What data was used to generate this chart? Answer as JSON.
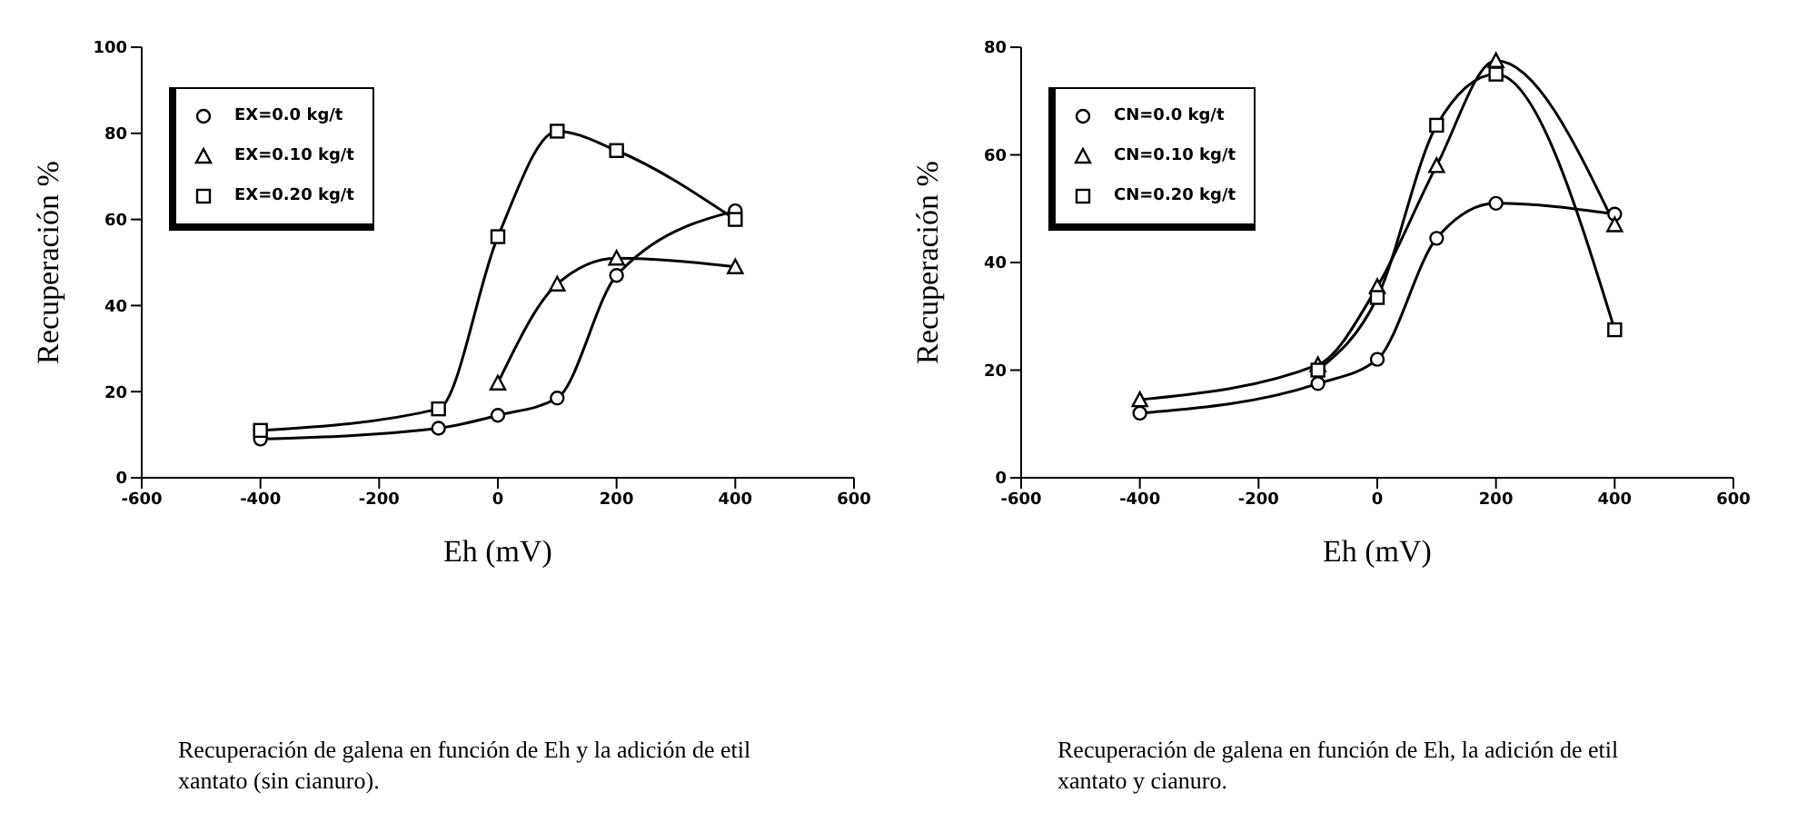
{
  "chart_data": [
    {
      "type": "line",
      "xlabel": "Eh (mV)",
      "ylabel": "Recuperación %",
      "xlim": [
        -600,
        600
      ],
      "xticks": [
        -600,
        -400,
        -200,
        0,
        200,
        400,
        600
      ],
      "ylim": [
        0,
        100
      ],
      "yticks": [
        0,
        20,
        40,
        60,
        80,
        100
      ],
      "legend": "top left",
      "annotations": [
        "Recuperación de galena en función de  Eh y la adición de etil xantato (sin cianuro)."
      ],
      "series": [
        {
          "name": "EX=0.0 kg/t",
          "color": "#000000",
          "marker": "circle",
          "x": [
            -400,
            -100,
            0,
            100,
            200,
            400
          ],
          "values": [
            9,
            11.5,
            14.5,
            18.5,
            47,
            62
          ]
        },
        {
          "name": "EX=0.10 kg/t",
          "color": "#000000",
          "marker": "triangle",
          "x": [
            0,
            100,
            200,
            400
          ],
          "values": [
            22,
            45,
            51,
            49
          ]
        },
        {
          "name": "EX=0.20 kg/t",
          "color": "#000000",
          "marker": "square",
          "x": [
            -400,
            -100,
            0,
            100,
            200,
            400
          ],
          "values": [
            11,
            16,
            56,
            80.5,
            76,
            60
          ]
        }
      ]
    },
    {
      "type": "line",
      "xlabel": "Eh (mV)",
      "ylabel": "Recuperación %",
      "xlim": [
        -600,
        600
      ],
      "xticks": [
        -600,
        -400,
        -200,
        0,
        200,
        400,
        600
      ],
      "ylim": [
        0,
        80
      ],
      "yticks": [
        0,
        20,
        40,
        60,
        80
      ],
      "legend": "top left",
      "annotations": [
        "Recuperación de galena en función de  Eh, la adición de etil xantato y cianuro."
      ],
      "series": [
        {
          "name": "CN=0.0 kg/t",
          "color": "#000000",
          "marker": "circle",
          "x": [
            -400,
            -100,
            0,
            100,
            200,
            400
          ],
          "values": [
            12,
            17.5,
            22,
            44.5,
            51,
            49
          ]
        },
        {
          "name": "CN=0.10 kg/t",
          "color": "#000000",
          "marker": "triangle",
          "x": [
            -400,
            -100,
            0,
            100,
            200,
            400
          ],
          "values": [
            14.5,
            21,
            35.5,
            58,
            77.5,
            47
          ]
        },
        {
          "name": "CN=0.20 kg/t",
          "color": "#000000",
          "marker": "square",
          "x": [
            -100,
            0,
            100,
            200,
            400
          ],
          "values": [
            20,
            33.5,
            65.5,
            75,
            27.5
          ]
        }
      ]
    }
  ]
}
